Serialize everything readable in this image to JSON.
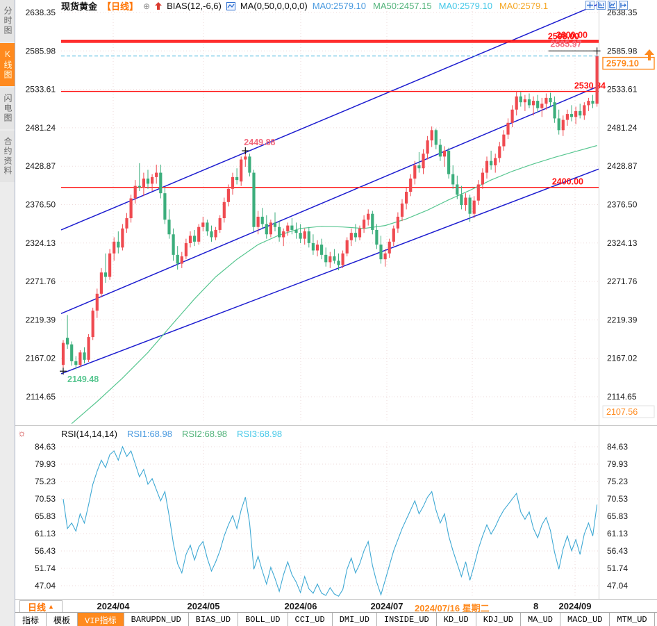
{
  "header": {
    "symbol": "现货黄金",
    "period": "【日线】",
    "bias_label": "BIAS(12,-6,6)",
    "ma_label": "MA(0,50,0,0,0,0)",
    "ma_values": [
      {
        "text": "MA0:2579.10",
        "color": "#4a9adf"
      },
      {
        "text": "MA50:2457.15",
        "color": "#52b37a"
      },
      {
        "text": "MA0:2579.10",
        "color": "#45c8e8"
      },
      {
        "text": "MA0:2579.1",
        "color": "#f5a623"
      }
    ],
    "icons": [
      "pan-icon",
      "price-scale-icon",
      "chart-scale-icon",
      "exit-right-icon"
    ]
  },
  "sidebar": {
    "tabs": [
      {
        "label": "分时图",
        "selected": false
      },
      {
        "label": "K线图",
        "selected": true
      },
      {
        "label": "闪电图",
        "selected": false
      },
      {
        "label": "合约资料",
        "selected": false
      }
    ]
  },
  "rsi_header": {
    "indicator": "RSI(14,14,14)",
    "series_labels": [
      {
        "text": "RSI1:68.98",
        "color": "#4a9adf"
      },
      {
        "text": "RSI2:68.98",
        "color": "#52b37a"
      },
      {
        "text": "RSI3:68.98",
        "color": "#45c8e8"
      }
    ],
    "gear_icon": "settings-sun-icon"
  },
  "date_axis": {
    "period_label": "日线",
    "period_arrow": "▲",
    "months": [
      {
        "text": "2024/04",
        "x": 141
      },
      {
        "text": "2024/05",
        "x": 271
      },
      {
        "text": "2024/06",
        "x": 411
      },
      {
        "text": "2024/07",
        "x": 535
      },
      {
        "text": "2024/09",
        "x": 806
      }
    ],
    "crosshair_date": {
      "text": "2024/07/16 星期二",
      "x": 575
    },
    "partial_label": {
      "text": "8",
      "x": 746
    }
  },
  "toolbar": {
    "tabs": [
      "指标",
      "模板",
      "VIP指标",
      "BARUPDN_UD",
      "BIAS_UD",
      "BOLL_UD",
      "CCI_UD",
      "DMI_UD",
      "INSIDE_UD",
      "KD_UD",
      "KDJ_UD",
      "MA_UD",
      "MACD_UD",
      "MTM_UD",
      ">>"
    ],
    "selected": "VIP指标"
  },
  "colors": {
    "accent_orange": "#ff8a1e",
    "red_line": "#ff1414",
    "trendline_blue": "#1d1dd0",
    "current_price_line": "#3ab0dc",
    "grid": "#eddada",
    "axis_text": "#1a1a1a",
    "up_candle": "#ef4a50",
    "down_candle": "#3cae7c",
    "rsi_line": "#3fa9d4",
    "ma50_line": "#57c690",
    "label_pink": "#f2697d",
    "label_green": "#57c690"
  },
  "chart_data": [
    {
      "type": "candlestick",
      "title": "现货黄金 日线",
      "yticks": [
        "2638.35",
        "2585.98",
        "2533.61",
        "2481.24",
        "2428.87",
        "2376.50",
        "2324.13",
        "2271.76",
        "2219.39",
        "2167.02",
        "2114.65"
      ],
      "right_extra_tick": "2107.56",
      "ylim": [
        2114.65,
        2638.35
      ],
      "month_grid_x": [
        141,
        271,
        411,
        535,
        658,
        806
      ],
      "up_color": "#ef4a50",
      "down_color": "#3cae7c",
      "hline_color": "#ff1414",
      "hlines": [
        {
          "price": 2600.0,
          "label": "2600.00",
          "w": 2,
          "label_x": 824
        },
        {
          "price": 2598.0,
          "label": "2598.00",
          "w": 2,
          "label_x": 812
        },
        {
          "price": 2530.84,
          "label": "2530.84",
          "w": 1.4,
          "label_x": 850
        },
        {
          "price": 2400.0,
          "label": "2400.00",
          "w": 1.4,
          "label_x": 818
        }
      ],
      "trendlines": [
        {
          "p_left": 2342,
          "p_right": 2650,
          "color": "#1d1dd0"
        },
        {
          "p_left": 2228,
          "p_right": 2538,
          "color": "#1d1dd0"
        },
        {
          "p_left": 2146,
          "p_right": 2425,
          "color": "#1d1dd0"
        }
      ],
      "ma50": {
        "name": "MA50",
        "color": "#57c690",
        "points": [
          [
            2,
            2078
          ],
          [
            8,
            2108
          ],
          [
            14,
            2140
          ],
          [
            20,
            2175
          ],
          [
            26,
            2215
          ],
          [
            31,
            2248
          ],
          [
            36,
            2278
          ],
          [
            41,
            2302
          ],
          [
            46,
            2322
          ],
          [
            51,
            2335
          ],
          [
            56,
            2344
          ],
          [
            61,
            2347
          ],
          [
            66,
            2346
          ],
          [
            71,
            2344
          ],
          [
            76,
            2348
          ],
          [
            81,
            2357
          ],
          [
            86,
            2369
          ],
          [
            91,
            2383
          ],
          [
            96,
            2396
          ],
          [
            101,
            2410
          ],
          [
            106,
            2422
          ],
          [
            111,
            2432
          ],
          [
            116,
            2441
          ],
          [
            121,
            2449
          ],
          [
            126,
            2457
          ]
        ]
      },
      "current_price": {
        "value": 2579.1,
        "label": "2579.10",
        "line_color": "#3ab0dc",
        "box_color": "#ff8a1e",
        "arrow": "up"
      },
      "annotations": [
        {
          "text": "2585.97",
          "price": 2585.97,
          "i": 126,
          "color": "#f2697d",
          "kind": "high-ext"
        },
        {
          "text": "2449.88",
          "price": 2449.88,
          "i": 43,
          "color": "#f2697d",
          "kind": "high"
        },
        {
          "text": "2149.48",
          "price": 2149.48,
          "i": 0,
          "color": "#57c690",
          "kind": "low"
        }
      ],
      "candles": [
        [
          2158,
          2192,
          2149.48,
          2188
        ],
        [
          2195,
          2226,
          2180,
          2186
        ],
        [
          2186,
          2190,
          2157,
          2163
        ],
        [
          2163,
          2170,
          2152,
          2158
        ],
        [
          2158,
          2178,
          2155,
          2175
        ],
        [
          2175,
          2182,
          2160,
          2165
        ],
        [
          2165,
          2200,
          2162,
          2196
        ],
        [
          2196,
          2236,
          2192,
          2232
        ],
        [
          2232,
          2262,
          2222,
          2255
        ],
        [
          2255,
          2290,
          2250,
          2284
        ],
        [
          2284,
          2310,
          2270,
          2278
        ],
        [
          2278,
          2316,
          2274,
          2310
        ],
        [
          2310,
          2332,
          2300,
          2326
        ],
        [
          2326,
          2340,
          2310,
          2318
        ],
        [
          2318,
          2350,
          2314,
          2344
        ],
        [
          2344,
          2365,
          2338,
          2358
        ],
        [
          2358,
          2390,
          2352,
          2385
        ],
        [
          2385,
          2410,
          2378,
          2402
        ],
        [
          2402,
          2433,
          2395,
          2400
        ],
        [
          2400,
          2420,
          2388,
          2412
        ],
        [
          2412,
          2424,
          2398,
          2405
        ],
        [
          2405,
          2418,
          2395,
          2414
        ],
        [
          2414,
          2431,
          2405,
          2420
        ],
        [
          2420,
          2431,
          2385,
          2392
        ],
        [
          2392,
          2400,
          2350,
          2356
        ],
        [
          2356,
          2370,
          2330,
          2336
        ],
        [
          2336,
          2344,
          2300,
          2308
        ],
        [
          2308,
          2320,
          2288,
          2296
        ],
        [
          2296,
          2312,
          2290,
          2306
        ],
        [
          2306,
          2330,
          2302,
          2324
        ],
        [
          2324,
          2340,
          2318,
          2334
        ],
        [
          2334,
          2342,
          2320,
          2326
        ],
        [
          2326,
          2350,
          2322,
          2346
        ],
        [
          2346,
          2360,
          2340,
          2352
        ],
        [
          2352,
          2356,
          2334,
          2340
        ],
        [
          2340,
          2348,
          2326,
          2332
        ],
        [
          2332,
          2346,
          2328,
          2342
        ],
        [
          2342,
          2362,
          2338,
          2358
        ],
        [
          2358,
          2386,
          2352,
          2380
        ],
        [
          2380,
          2404,
          2374,
          2398
        ],
        [
          2398,
          2420,
          2390,
          2414
        ],
        [
          2414,
          2426,
          2404,
          2410
        ],
        [
          2408,
          2442,
          2402,
          2438
        ],
        [
          2438,
          2449.88,
          2428,
          2442
        ],
        [
          2442,
          2446,
          2415,
          2420
        ],
        [
          2420,
          2424,
          2340,
          2346
        ],
        [
          2346,
          2368,
          2336,
          2360
        ],
        [
          2360,
          2372,
          2344,
          2350
        ],
        [
          2350,
          2362,
          2330,
          2336
        ],
        [
          2336,
          2356,
          2332,
          2352
        ],
        [
          2352,
          2366,
          2340,
          2346
        ],
        [
          2346,
          2354,
          2326,
          2332
        ],
        [
          2332,
          2344,
          2320,
          2340
        ],
        [
          2340,
          2352,
          2334,
          2348
        ],
        [
          2348,
          2358,
          2336,
          2342
        ],
        [
          2342,
          2352,
          2330,
          2338
        ],
        [
          2338,
          2350,
          2324,
          2330
        ],
        [
          2330,
          2344,
          2322,
          2340
        ],
        [
          2340,
          2346,
          2318,
          2324
        ],
        [
          2324,
          2336,
          2308,
          2314
        ],
        [
          2314,
          2328,
          2306,
          2322
        ],
        [
          2322,
          2330,
          2302,
          2308
        ],
        [
          2308,
          2318,
          2292,
          2298
        ],
        [
          2298,
          2312,
          2290,
          2306
        ],
        [
          2306,
          2316,
          2296,
          2300
        ],
        [
          2300,
          2310,
          2287,
          2294
        ],
        [
          2294,
          2314,
          2290,
          2310
        ],
        [
          2310,
          2332,
          2306,
          2328
        ],
        [
          2328,
          2344,
          2320,
          2338
        ],
        [
          2338,
          2350,
          2326,
          2332
        ],
        [
          2332,
          2348,
          2328,
          2344
        ],
        [
          2344,
          2362,
          2338,
          2356
        ],
        [
          2356,
          2370,
          2348,
          2364
        ],
        [
          2364,
          2368,
          2336,
          2342
        ],
        [
          2342,
          2350,
          2316,
          2322
        ],
        [
          2322,
          2334,
          2296,
          2302
        ],
        [
          2302,
          2316,
          2292,
          2310
        ],
        [
          2310,
          2330,
          2304,
          2326
        ],
        [
          2326,
          2348,
          2320,
          2344
        ],
        [
          2344,
          2366,
          2338,
          2360
        ],
        [
          2360,
          2384,
          2354,
          2378
        ],
        [
          2378,
          2400,
          2370,
          2394
        ],
        [
          2394,
          2418,
          2388,
          2412
        ],
        [
          2412,
          2436,
          2404,
          2430
        ],
        [
          2430,
          2448,
          2420,
          2426
        ],
        [
          2426,
          2452,
          2418,
          2446
        ],
        [
          2446,
          2470,
          2438,
          2464
        ],
        [
          2464,
          2483,
          2455,
          2478
        ],
        [
          2478,
          2480,
          2452,
          2458
        ],
        [
          2458,
          2466,
          2436,
          2442
        ],
        [
          2442,
          2456,
          2428,
          2450
        ],
        [
          2450,
          2454,
          2412,
          2418
        ],
        [
          2418,
          2430,
          2398,
          2404
        ],
        [
          2404,
          2416,
          2384,
          2390
        ],
        [
          2390,
          2402,
          2370,
          2376
        ],
        [
          2376,
          2392,
          2368,
          2386
        ],
        [
          2386,
          2390,
          2353,
          2364
        ],
        [
          2364,
          2388,
          2358,
          2382
        ],
        [
          2382,
          2410,
          2376,
          2404
        ],
        [
          2404,
          2426,
          2398,
          2420
        ],
        [
          2420,
          2442,
          2412,
          2436
        ],
        [
          2436,
          2450,
          2424,
          2430
        ],
        [
          2430,
          2446,
          2420,
          2440
        ],
        [
          2440,
          2462,
          2434,
          2456
        ],
        [
          2456,
          2478,
          2450,
          2472
        ],
        [
          2472,
          2494,
          2466,
          2488
        ],
        [
          2488,
          2512,
          2482,
          2506
        ],
        [
          2506,
          2531,
          2498,
          2524
        ],
        [
          2524,
          2530,
          2510,
          2516
        ],
        [
          2516,
          2526,
          2504,
          2520
        ],
        [
          2520,
          2528,
          2508,
          2512
        ],
        [
          2512,
          2524,
          2498,
          2518
        ],
        [
          2518,
          2526,
          2502,
          2508
        ],
        [
          2508,
          2522,
          2496,
          2514
        ],
        [
          2514,
          2528,
          2506,
          2522
        ],
        [
          2522,
          2529,
          2510,
          2516
        ],
        [
          2516,
          2524,
          2488,
          2494
        ],
        [
          2494,
          2506,
          2472,
          2478
        ],
        [
          2478,
          2498,
          2470,
          2492
        ],
        [
          2492,
          2506,
          2484,
          2500
        ],
        [
          2500,
          2512,
          2490,
          2496
        ],
        [
          2496,
          2510,
          2486,
          2504
        ],
        [
          2504,
          2514,
          2494,
          2498
        ],
        [
          2498,
          2516,
          2492,
          2512
        ],
        [
          2512,
          2522,
          2504,
          2518
        ],
        [
          2518,
          2526,
          2508,
          2514
        ],
        [
          2514,
          2585.97,
          2510,
          2579.1
        ]
      ]
    },
    {
      "type": "line",
      "indicator": "RSI(14,14,14)",
      "yticks": [
        "84.63",
        "79.93",
        "75.23",
        "70.53",
        "65.83",
        "61.13",
        "56.43",
        "51.74",
        "47.04"
      ],
      "ylim": [
        44,
        87
      ],
      "line_color": "#3fa9d4",
      "month_grid_x": [
        141,
        271,
        411,
        535,
        658,
        806
      ],
      "values": [
        70.5,
        62.5,
        64.0,
        61.8,
        66.5,
        64.0,
        69.0,
        74.5,
        78.0,
        81.0,
        79.0,
        82.5,
        83.5,
        81.0,
        84.63,
        82.0,
        83.5,
        80.0,
        76.5,
        78.5,
        74.5,
        76.0,
        73.0,
        70.0,
        72.5,
        66.0,
        58.5,
        53.0,
        50.5,
        55.5,
        58.0,
        54.0,
        57.5,
        59.0,
        54.5,
        51.0,
        53.5,
        56.5,
        60.5,
        63.5,
        66.0,
        62.5,
        67.5,
        71.0,
        64.0,
        51.5,
        55.0,
        51.0,
        47.5,
        52.0,
        49.0,
        45.5,
        50.0,
        53.5,
        50.0,
        48.0,
        45.2,
        49.5,
        46.2,
        45.0,
        47.5,
        45.0,
        44.4,
        46.5,
        44.8,
        44.2,
        46.0,
        51.5,
        54.5,
        50.5,
        53.0,
        56.5,
        59.0,
        52.5,
        48.0,
        44.6,
        48.5,
        52.5,
        56.5,
        59.5,
        62.5,
        65.0,
        67.5,
        70.0,
        66.5,
        68.5,
        71.0,
        72.5,
        67.5,
        64.0,
        66.5,
        60.5,
        56.5,
        53.0,
        49.5,
        53.5,
        48.5,
        52.5,
        57.0,
        60.5,
        63.5,
        61.0,
        63.0,
        65.5,
        67.5,
        69.0,
        70.5,
        72.0,
        67.0,
        65.0,
        67.0,
        62.5,
        60.0,
        63.5,
        65.5,
        62.0,
        56.0,
        51.5,
        57.0,
        60.5,
        56.5,
        59.5,
        55.5,
        61.0,
        64.0,
        60.5,
        68.98
      ]
    }
  ]
}
